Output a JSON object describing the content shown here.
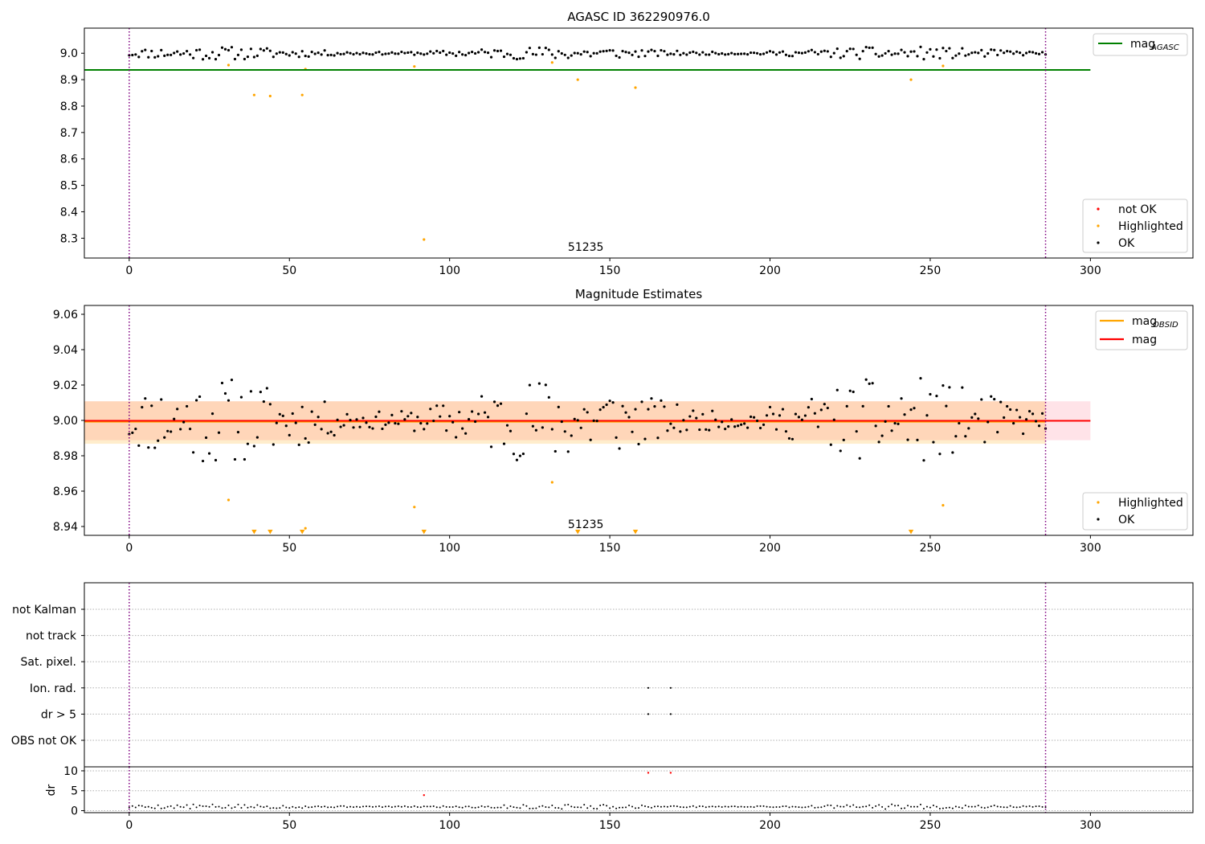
{
  "chart_data": [
    {
      "type": "scatter",
      "title": "AGASC ID 362290976.0",
      "xlabel": "",
      "ylabel": "",
      "xlim": [
        -14,
        332
      ],
      "ylim": [
        8.225,
        9.095
      ],
      "xticks": [
        0,
        50,
        100,
        150,
        200,
        250,
        300
      ],
      "yticks": [
        8.3,
        8.4,
        8.5,
        8.6,
        8.7,
        8.8,
        8.9,
        9.0
      ],
      "ytick_labels": [
        "8.3",
        "8.4",
        "8.5",
        "8.6",
        "8.7",
        "8.8",
        "8.9",
        "9.0"
      ],
      "vlines": [
        0,
        286
      ],
      "vline_color": "#800080",
      "hline": {
        "name": "mag_AGASC",
        "y": 8.937,
        "x_range": [
          -14,
          300
        ],
        "color": "#008000"
      },
      "annotation": {
        "text": "51235",
        "x": 142.5
      },
      "legend_top": [
        {
          "name": "mag",
          "sub": "AGASC",
          "color": "#008000"
        }
      ],
      "legend_bottom": [
        {
          "name": "not OK",
          "color": "#ff0000"
        },
        {
          "name": "Highlighted",
          "color": "#ffa500"
        },
        {
          "name": "OK",
          "color": "#000000"
        }
      ],
      "series": [
        {
          "name": "OK",
          "color": "#000000",
          "seed": 11,
          "base": 9.0,
          "amp": 0.025,
          "step": 1,
          "from": 0,
          "to": 286
        },
        {
          "name": "Highlighted",
          "color": "#ffa500",
          "x": [
            31,
            39,
            44,
            54,
            55,
            89,
            92,
            132,
            140,
            158,
            244,
            254
          ],
          "y": [
            8.955,
            8.842,
            8.838,
            8.842,
            8.94,
            8.95,
            8.295,
            8.965,
            8.9,
            8.87,
            8.9,
            8.952
          ]
        }
      ]
    },
    {
      "type": "scatter",
      "title": "Magnitude Estimates",
      "xlabel": "",
      "ylabel": "",
      "xlim": [
        -14,
        332
      ],
      "ylim": [
        8.935,
        9.065
      ],
      "xticks": [
        0,
        50,
        100,
        150,
        200,
        250,
        300
      ],
      "yticks": [
        8.94,
        8.96,
        8.98,
        9.0,
        9.02,
        9.04,
        9.06
      ],
      "ytick_labels": [
        "8.94",
        "8.96",
        "8.98",
        "9.00",
        "9.02",
        "9.04",
        "9.06"
      ],
      "vlines": [
        0,
        286
      ],
      "vline_color": "#800080",
      "bands": [
        {
          "y0": 8.9888,
          "y1": 9.0108,
          "x_range": [
            -14,
            300
          ],
          "color": "#ffc0cb",
          "opacity": 0.45
        },
        {
          "y0": 8.9868,
          "y1": 9.0108,
          "x_range": [
            -14,
            286
          ],
          "color": "#ffa500",
          "opacity": 0.2
        }
      ],
      "lines": [
        {
          "name": "mag_OBSID",
          "y": 8.9995,
          "x_range": [
            -14,
            286
          ],
          "color": "#ffa500",
          "width": 3
        },
        {
          "name": "mag",
          "y": 8.9998,
          "x_range": [
            -14,
            300
          ],
          "color": "#ff0000",
          "width": 2
        }
      ],
      "annotation": {
        "text": "51235",
        "x": 142.5
      },
      "legend_top": [
        {
          "name": "mag",
          "sub": "OBSID",
          "color": "#ffa500"
        },
        {
          "name": "mag",
          "sub": "",
          "color": "#ff0000"
        }
      ],
      "legend_bottom": [
        {
          "name": "Highlighted",
          "color": "#ffa500"
        },
        {
          "name": "OK",
          "color": "#000000"
        }
      ],
      "series": [
        {
          "name": "OK",
          "color": "#000000",
          "seed": 11,
          "base": 9.0,
          "amp": 0.025,
          "step": 1,
          "from": 0,
          "to": 286
        },
        {
          "name": "Highlighted",
          "color": "#ffa500",
          "x": [
            31,
            55,
            89,
            132,
            254
          ],
          "y": [
            8.955,
            8.939,
            8.951,
            8.965,
            8.952
          ]
        },
        {
          "name": "Highlighted (below range)",
          "color": "#ffa500",
          "x": [
            39,
            44,
            54,
            92,
            140,
            158,
            244
          ],
          "y": [
            8.937,
            8.937,
            8.937,
            8.937,
            8.937,
            8.937,
            8.937
          ]
        }
      ]
    },
    {
      "type": "scatter",
      "title": "",
      "xlabel": "",
      "ylabel": "",
      "xlim": [
        -14,
        332
      ],
      "categories": [
        "not Kalman",
        "not track",
        "Sat. pixel.",
        "Ion. rad.",
        "dr > 5",
        "OBS not OK"
      ],
      "vlines": [
        0,
        286
      ],
      "vline_color": "#800080",
      "flags": [
        {
          "category": "Ion. rad.",
          "x": [
            162,
            169
          ]
        },
        {
          "category": "dr > 5",
          "x": [
            162,
            169
          ]
        }
      ]
    },
    {
      "type": "scatter",
      "title": "",
      "xlabel": "",
      "ylabel": "dr",
      "xlim": [
        -14,
        332
      ],
      "ylim": [
        -0.5,
        11
      ],
      "xticks": [
        0,
        50,
        100,
        150,
        200,
        250,
        300
      ],
      "yticks": [
        0,
        5,
        10
      ],
      "vlines": [
        0,
        286
      ],
      "vline_color": "#800080",
      "series": [
        {
          "name": "OK",
          "color": "#000000",
          "seed": 5,
          "base": 1.0,
          "amp": 0.6,
          "step": 1,
          "from": 0,
          "to": 286
        },
        {
          "name": "not OK",
          "color": "#ff0000",
          "x": [
            92,
            162,
            169
          ],
          "y": [
            3.9,
            9.5,
            9.5
          ]
        }
      ]
    }
  ]
}
